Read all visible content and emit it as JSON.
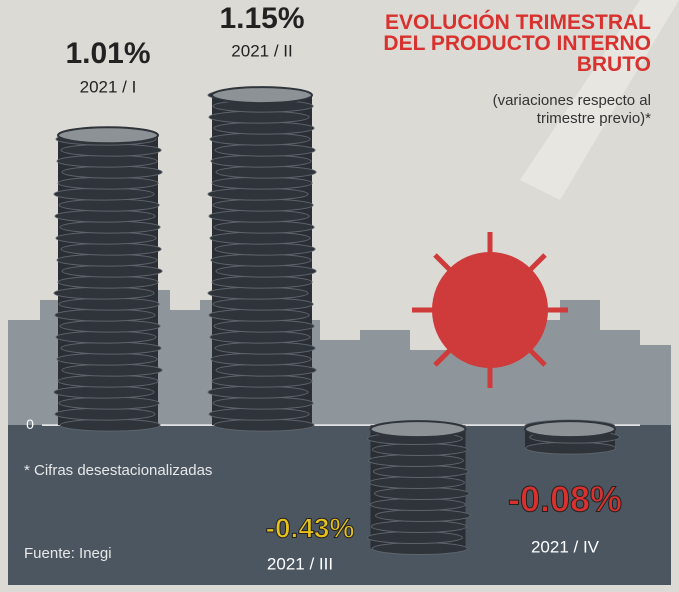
{
  "chart_data": {
    "type": "bar",
    "title": "EVOLUCIÓN TRIMESTRAL DEL PRODUCTO INTERNO BRUTO",
    "subtitle": "(variaciones respecto al trimestre previo)*",
    "categories": [
      "2021 / I",
      "2021 / II",
      "2021 / III",
      "2021 / IV"
    ],
    "values": [
      1.01,
      1.15,
      -0.43,
      -0.08
    ],
    "value_labels": [
      "1.01%",
      "1.15%",
      "-0.43%",
      "-0.08%"
    ],
    "label_colors": [
      "#222222",
      "#222222",
      "#e8c21a",
      "#d8312e"
    ],
    "color": "#2b2f35",
    "ylim": [
      -0.55,
      1.45
    ],
    "yticks": [
      0
    ],
    "notes": [
      "* Cifras desestacionalizadas",
      "Fuente: Inegi"
    ]
  }
}
